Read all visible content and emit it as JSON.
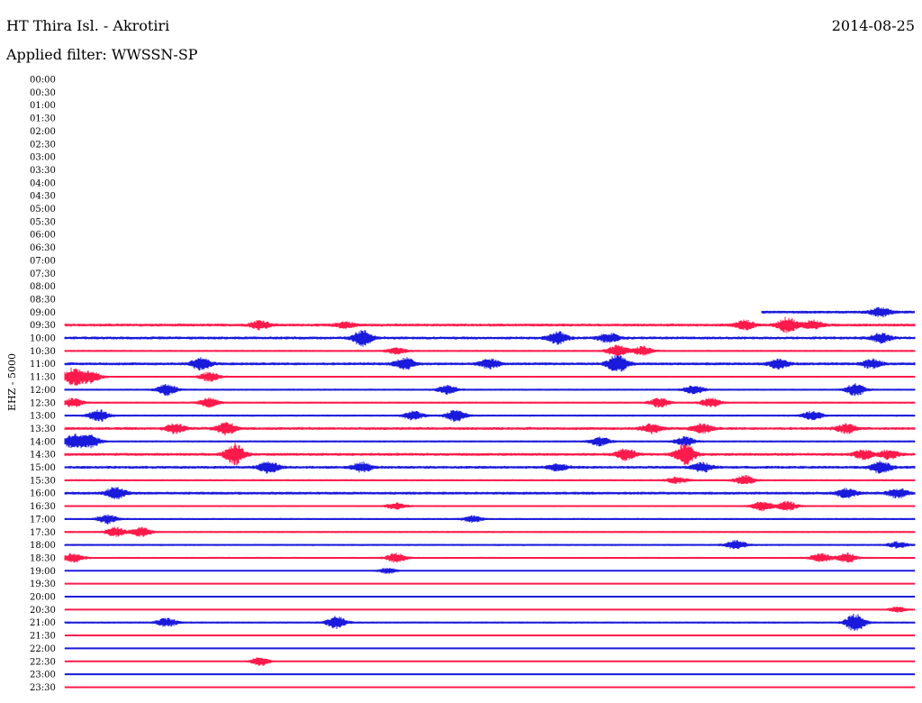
{
  "header": {
    "station": "HT Thira Isl. - Akrotiri",
    "date": "2014-08-25",
    "filter": "Applied filter: WWSSN-SP",
    "channel": "EHZ - 5000"
  },
  "colors": {
    "red": "#ff1a4b",
    "blue": "#1a1adc"
  },
  "chart_data": {
    "type": "line",
    "title": "HT Thira Isl. - Akrotiri",
    "subtitle": "Applied filter: WWSSN-SP",
    "ylabel": "EHZ - 5000",
    "categories": [
      "00:00",
      "00:30",
      "01:00",
      "01:30",
      "02:00",
      "02:30",
      "03:00",
      "03:30",
      "04:00",
      "04:30",
      "05:00",
      "05:30",
      "06:00",
      "06:30",
      "07:00",
      "07:30",
      "08:00",
      "08:30",
      "09:00",
      "09:30",
      "10:00",
      "10:30",
      "11:00",
      "11:30",
      "12:00",
      "12:30",
      "13:00",
      "13:30",
      "14:00",
      "14:30",
      "15:00",
      "15:30",
      "16:00",
      "16:30",
      "17:00",
      "17:30",
      "18:00",
      "18:30",
      "19:00",
      "19:30",
      "20:00",
      "20:30",
      "21:00",
      "21:30",
      "22:00",
      "22:30",
      "23:00",
      "23:30"
    ],
    "x_range_minutes": [
      0,
      30
    ],
    "traces": [
      {
        "label": "09:00",
        "color": "blue",
        "start": 0.82,
        "level": 3,
        "events": [
          [
            0.96,
            3
          ]
        ]
      },
      {
        "label": "09:30",
        "color": "red",
        "level": 3,
        "events": [
          [
            0.23,
            3
          ],
          [
            0.33,
            2
          ],
          [
            0.8,
            3
          ],
          [
            0.85,
            5
          ],
          [
            0.88,
            3
          ]
        ]
      },
      {
        "label": "10:00",
        "color": "blue",
        "level": 3,
        "events": [
          [
            0.35,
            5
          ],
          [
            0.58,
            4
          ],
          [
            0.64,
            3
          ],
          [
            0.96,
            3
          ]
        ]
      },
      {
        "label": "10:30",
        "color": "red",
        "level": 2,
        "events": [
          [
            0.39,
            2
          ],
          [
            0.65,
            4
          ],
          [
            0.68,
            3
          ]
        ]
      },
      {
        "label": "11:00",
        "color": "blue",
        "level": 3,
        "events": [
          [
            0.16,
            4
          ],
          [
            0.4,
            4
          ],
          [
            0.5,
            3
          ],
          [
            0.65,
            6
          ],
          [
            0.84,
            3
          ],
          [
            0.95,
            3
          ]
        ]
      },
      {
        "label": "11:30",
        "color": "red",
        "level": 2,
        "events": [
          [
            0.01,
            6
          ],
          [
            0.03,
            4
          ],
          [
            0.17,
            3
          ]
        ]
      },
      {
        "label": "12:00",
        "color": "blue",
        "level": 2,
        "events": [
          [
            0.12,
            4
          ],
          [
            0.45,
            3
          ],
          [
            0.74,
            3
          ],
          [
            0.93,
            4
          ]
        ]
      },
      {
        "label": "12:30",
        "color": "red",
        "level": 2,
        "events": [
          [
            0.01,
            3
          ],
          [
            0.17,
            3
          ],
          [
            0.7,
            3
          ],
          [
            0.76,
            3
          ]
        ]
      },
      {
        "label": "13:00",
        "color": "blue",
        "level": 2,
        "events": [
          [
            0.04,
            4
          ],
          [
            0.41,
            3
          ],
          [
            0.46,
            4
          ],
          [
            0.88,
            3
          ]
        ]
      },
      {
        "label": "13:30",
        "color": "red",
        "level": 3,
        "events": [
          [
            0.13,
            3
          ],
          [
            0.19,
            4
          ],
          [
            0.69,
            3
          ],
          [
            0.75,
            3
          ],
          [
            0.92,
            3
          ]
        ]
      },
      {
        "label": "14:00",
        "color": "blue",
        "level": 2,
        "events": [
          [
            0.01,
            5
          ],
          [
            0.03,
            4
          ],
          [
            0.63,
            3
          ],
          [
            0.73,
            3
          ]
        ]
      },
      {
        "label": "14:30",
        "color": "red",
        "level": 3,
        "events": [
          [
            0.2,
            7
          ],
          [
            0.66,
            4
          ],
          [
            0.73,
            7
          ],
          [
            0.94,
            3
          ],
          [
            0.97,
            3
          ]
        ]
      },
      {
        "label": "15:00",
        "color": "blue",
        "level": 3,
        "events": [
          [
            0.24,
            4
          ],
          [
            0.35,
            3
          ],
          [
            0.58,
            2
          ],
          [
            0.75,
            3
          ],
          [
            0.96,
            4
          ]
        ]
      },
      {
        "label": "15:30",
        "color": "red",
        "level": 2,
        "events": [
          [
            0.72,
            2
          ],
          [
            0.8,
            3
          ]
        ]
      },
      {
        "label": "16:00",
        "color": "blue",
        "level": 3,
        "events": [
          [
            0.06,
            4
          ],
          [
            0.92,
            3
          ],
          [
            0.98,
            3
          ]
        ]
      },
      {
        "label": "16:30",
        "color": "red",
        "level": 2,
        "events": [
          [
            0.39,
            2
          ],
          [
            0.82,
            3
          ],
          [
            0.85,
            3
          ]
        ]
      },
      {
        "label": "17:00",
        "color": "blue",
        "level": 2,
        "events": [
          [
            0.05,
            3
          ],
          [
            0.48,
            2
          ]
        ]
      },
      {
        "label": "17:30",
        "color": "red",
        "level": 2,
        "events": [
          [
            0.06,
            3
          ],
          [
            0.09,
            3
          ]
        ]
      },
      {
        "label": "18:00",
        "color": "blue",
        "level": 2,
        "events": [
          [
            0.79,
            3
          ],
          [
            0.98,
            2
          ]
        ]
      },
      {
        "label": "18:30",
        "color": "red",
        "level": 2,
        "events": [
          [
            0.01,
            3
          ],
          [
            0.39,
            3
          ],
          [
            0.89,
            3
          ],
          [
            0.92,
            3
          ]
        ]
      },
      {
        "label": "19:00",
        "color": "blue",
        "level": 1,
        "events": [
          [
            0.38,
            2
          ]
        ]
      },
      {
        "label": "19:30",
        "color": "red",
        "level": 1,
        "events": []
      },
      {
        "label": "20:00",
        "color": "blue",
        "level": 1,
        "events": []
      },
      {
        "label": "20:30",
        "color": "red",
        "level": 1,
        "events": [
          [
            0.98,
            2
          ]
        ]
      },
      {
        "label": "21:00",
        "color": "blue",
        "level": 2,
        "events": [
          [
            0.12,
            3
          ],
          [
            0.32,
            4
          ],
          [
            0.93,
            6
          ]
        ]
      },
      {
        "label": "21:30",
        "color": "red",
        "level": 1,
        "events": []
      },
      {
        "label": "22:00",
        "color": "blue",
        "level": 1,
        "events": []
      },
      {
        "label": "22:30",
        "color": "red",
        "level": 1,
        "events": [
          [
            0.23,
            3
          ]
        ]
      },
      {
        "label": "23:00",
        "color": "blue",
        "level": 1,
        "events": []
      },
      {
        "label": "23:30",
        "color": "red",
        "level": 1,
        "events": []
      }
    ]
  }
}
